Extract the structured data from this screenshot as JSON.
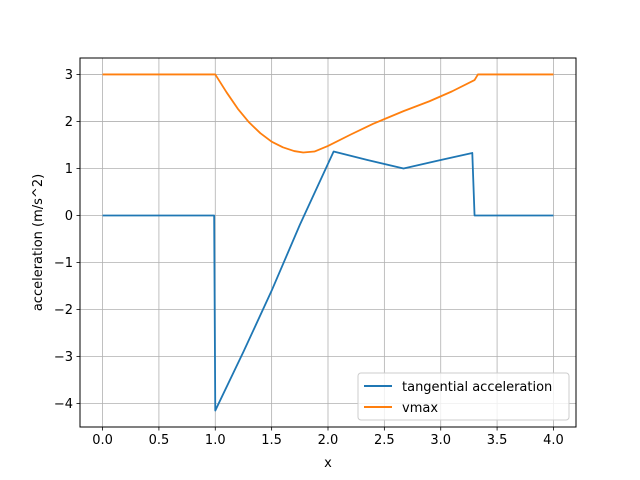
{
  "chart_data": {
    "type": "line",
    "title": "",
    "xlabel": "x",
    "ylabel": "acceleration (m/s^2)",
    "xlim": [
      -0.2,
      4.2
    ],
    "ylim": [
      -4.5,
      3.35
    ],
    "xticks": [
      0.0,
      0.5,
      1.0,
      1.5,
      2.0,
      2.5,
      3.0,
      3.5,
      4.0
    ],
    "xtick_labels": [
      "0.0",
      "0.5",
      "1.0",
      "1.5",
      "2.0",
      "2.5",
      "3.0",
      "3.5",
      "4.0"
    ],
    "yticks": [
      -4,
      -3,
      -2,
      -1,
      0,
      1,
      2,
      3
    ],
    "ytick_labels": [
      "−4",
      "−3",
      "−2",
      "−1",
      "0",
      "1",
      "2",
      "3"
    ],
    "grid": true,
    "legend_position": "lower-right",
    "series": [
      {
        "name": "tangential acceleration",
        "color": "#1f77b4",
        "points": [
          [
            0.0,
            0.0
          ],
          [
            0.5,
            0.0
          ],
          [
            0.99,
            0.0
          ],
          [
            1.0,
            -4.15
          ],
          [
            1.25,
            -2.9
          ],
          [
            1.5,
            -1.6
          ],
          [
            1.75,
            -0.2
          ],
          [
            2.0,
            1.1
          ],
          [
            2.05,
            1.36
          ],
          [
            2.35,
            1.18
          ],
          [
            2.67,
            1.0
          ],
          [
            3.0,
            1.18
          ],
          [
            3.28,
            1.33
          ],
          [
            3.3,
            0.0
          ],
          [
            3.6,
            0.0
          ],
          [
            4.0,
            0.0
          ]
        ]
      },
      {
        "name": "vmax",
        "color": "#ff7f0e",
        "points": [
          [
            0.0,
            3.0
          ],
          [
            0.5,
            3.0
          ],
          [
            1.0,
            3.0
          ],
          [
            1.1,
            2.62
          ],
          [
            1.2,
            2.27
          ],
          [
            1.3,
            1.98
          ],
          [
            1.4,
            1.75
          ],
          [
            1.5,
            1.57
          ],
          [
            1.6,
            1.45
          ],
          [
            1.7,
            1.37
          ],
          [
            1.78,
            1.34
          ],
          [
            1.88,
            1.36
          ],
          [
            2.0,
            1.48
          ],
          [
            2.2,
            1.72
          ],
          [
            2.4,
            1.95
          ],
          [
            2.67,
            2.22
          ],
          [
            2.9,
            2.43
          ],
          [
            3.1,
            2.64
          ],
          [
            3.3,
            2.88
          ],
          [
            3.33,
            3.0
          ],
          [
            3.6,
            3.0
          ],
          [
            4.0,
            3.0
          ]
        ]
      }
    ]
  }
}
